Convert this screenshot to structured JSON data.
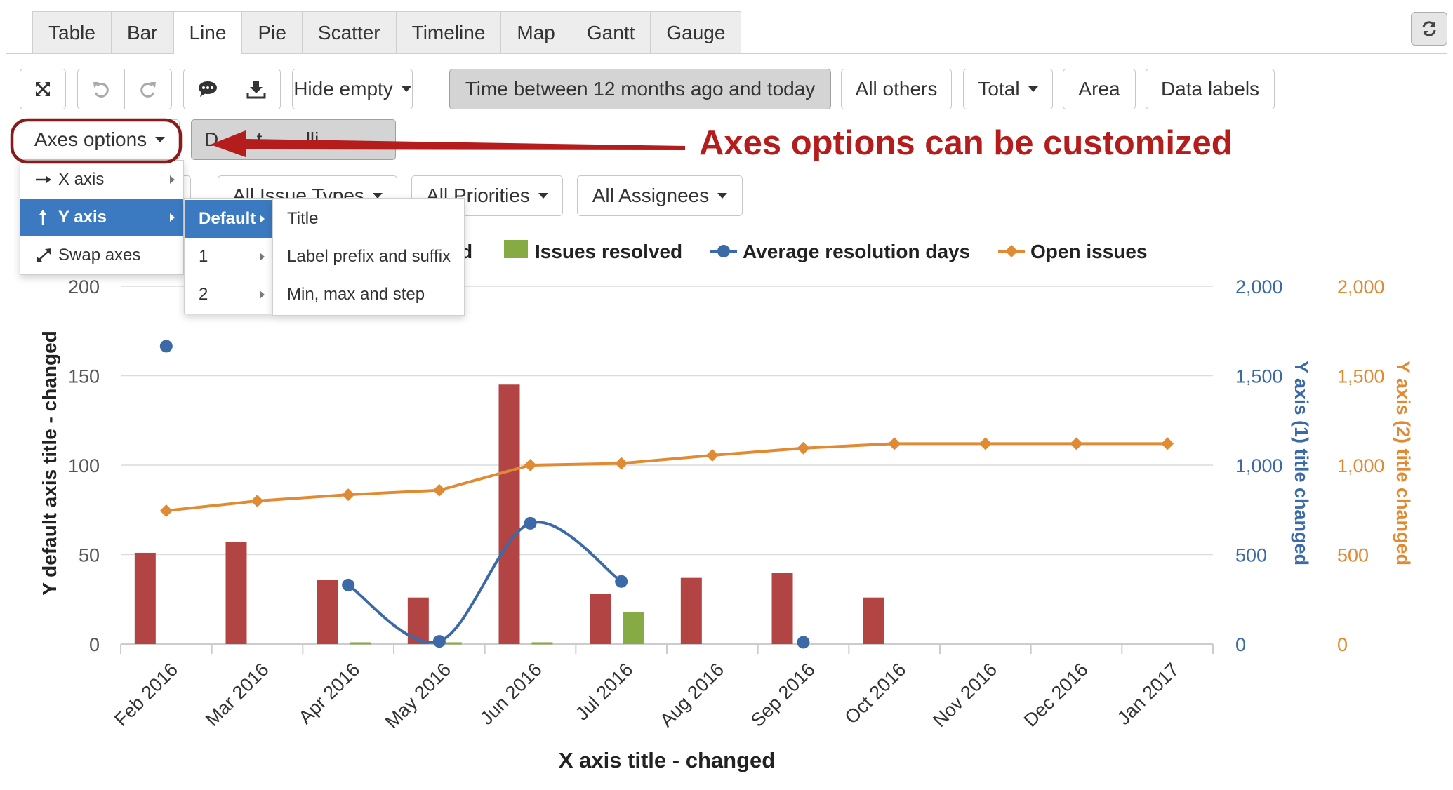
{
  "tabs": [
    "Table",
    "Bar",
    "Line",
    "Pie",
    "Scatter",
    "Timeline",
    "Map",
    "Gantt",
    "Gauge"
  ],
  "active_tab": "Line",
  "toolbar": {
    "hide_empty": "Hide empty",
    "time_range": "Time between 12 months ago and today",
    "all_others": "All others",
    "total": "Total",
    "area": "Area",
    "data_labels": "Data labels",
    "axes_options": "Axes options",
    "hidden_button_fragment": "D       t        lli"
  },
  "filters": {
    "issue_types": "All Issue Types",
    "priorities": "All Priorities",
    "assignees": "All Assignees"
  },
  "axes_menu": {
    "items": [
      "X axis",
      "Y axis",
      "Swap axes"
    ],
    "active": "Y axis",
    "icons": [
      "arrow-right-icon",
      "arrow-up-icon",
      "swap-icon"
    ]
  },
  "y_axis_menu": {
    "items": [
      "Default",
      "1",
      "2"
    ],
    "active": "Default"
  },
  "default_menu": {
    "items": [
      "Title",
      "Label prefix and suffix",
      "Min, max and step"
    ]
  },
  "annotation": "Axes options can be customized",
  "colors": {
    "created": "#b34444",
    "resolved": "#86aa44",
    "avg_days": "#3b6aa6",
    "open": "#e08a33",
    "menu_active": "#3b7ac0",
    "annotation": "#b51c1c"
  },
  "chart_data": {
    "type": "bar",
    "xlabel": "X axis title - changed",
    "ylabel": "Y default axis title - changed",
    "y1label": "Y axis (1) title changed",
    "y2label": "Y axis (2) title changed",
    "categories": [
      "Feb 2016",
      "Mar 2016",
      "Apr 2016",
      "May 2016",
      "Jun 2016",
      "Jul 2016",
      "Aug 2016",
      "Sep 2016",
      "Oct 2016",
      "Nov 2016",
      "Dec 2016",
      "Jan 2017"
    ],
    "ylim": [
      0,
      200
    ],
    "y1lim": [
      0,
      2000
    ],
    "y2lim": [
      0,
      2000
    ],
    "yticks": [
      "0",
      "50",
      "100",
      "150",
      "200"
    ],
    "y1ticks": [
      "0",
      "500",
      "1,000",
      "1,500",
      "2,000"
    ],
    "y2ticks": [
      "0",
      "500",
      "1,000",
      "1,500",
      "2,000"
    ],
    "legend_partial": "d",
    "series": [
      {
        "type": "bar",
        "axis": "default",
        "values": [
          51,
          57,
          36,
          26,
          145,
          28,
          37,
          40,
          26,
          null,
          null,
          null
        ]
      },
      {
        "type": "bar",
        "axis": "default",
        "name": "Issues resolved",
        "values": [
          null,
          null,
          1,
          1,
          1,
          18,
          null,
          null,
          null,
          null,
          null,
          null
        ]
      },
      {
        "type": "spline",
        "axis": "1",
        "name": "Average resolution days",
        "values": [
          1665,
          null,
          330,
          15,
          675,
          350,
          null,
          10,
          null,
          null,
          null,
          null
        ]
      },
      {
        "type": "line",
        "axis": "2",
        "name": "Open issues",
        "values": [
          745,
          800,
          835,
          860,
          1000,
          1010,
          1055,
          1095,
          1120,
          1120,
          1120,
          1120
        ]
      }
    ]
  }
}
